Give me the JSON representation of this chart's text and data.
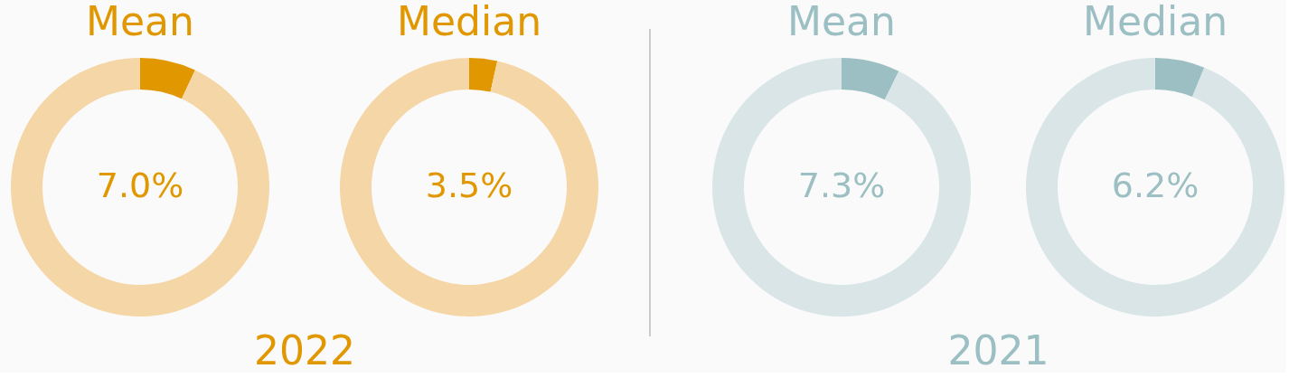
{
  "chart_data": [
    {
      "type": "donut",
      "title": "Mean",
      "categories": [
        null,
        null
      ],
      "values": [
        7.0,
        93.0
      ],
      "colors": [
        "#e09700",
        "#f5d6a7"
      ],
      "value_labels": [
        "7.0%",
        null
      ],
      "annotations": [
        "2022"
      ]
    },
    {
      "type": "donut",
      "title": "Median",
      "categories": [
        null,
        null
      ],
      "values": [
        3.5,
        96.5
      ],
      "colors": [
        "#e09700",
        "#f5d6a7"
      ],
      "value_labels": [
        "3.5%",
        null
      ]
    },
    {
      "type": "donut",
      "title": "Mean",
      "categories": [
        null,
        null
      ],
      "values": [
        7.3,
        92.7
      ],
      "colors": [
        "#9bbfc2",
        "#d9e5e7"
      ],
      "value_labels": [
        "7.3%",
        null
      ],
      "annotations": [
        "2021"
      ]
    },
    {
      "type": "donut",
      "title": "Median",
      "categories": [
        null,
        null
      ],
      "values": [
        6.2,
        93.8
      ],
      "colors": [
        "#9bbfc2",
        "#d9e5e7"
      ],
      "value_labels": [
        "6.2%",
        null
      ]
    }
  ]
}
